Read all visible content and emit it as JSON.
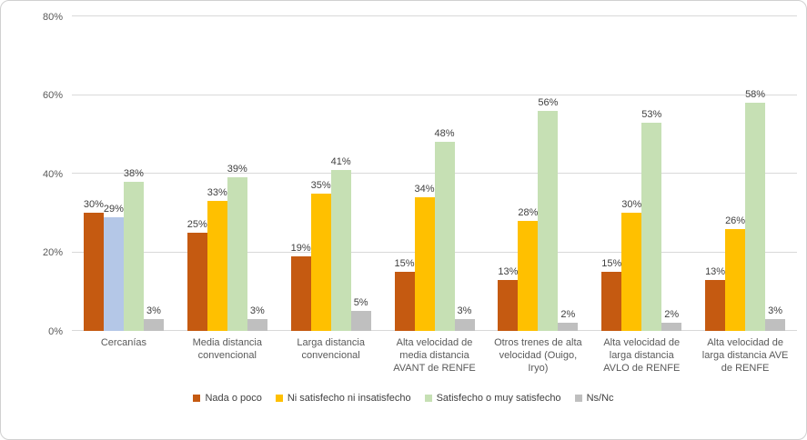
{
  "chart_data": {
    "type": "bar",
    "categories": [
      "Cercanías",
      "Media distancia convencional",
      "Larga distancia convencional",
      "Alta velocidad de media distancia AVANT de RENFE",
      "Otros trenes de alta velocidad (Ouigo, Iryo)",
      "Alta velocidad de larga distancia AVLO de RENFE",
      "Alta velocidad de larga distancia AVE de RENFE"
    ],
    "series": [
      {
        "name": "Nada o poco",
        "color": "#c55a11",
        "values": [
          30,
          25,
          19,
          15,
          13,
          15,
          13
        ]
      },
      {
        "name": "Ni satisfecho ni insatisfecho",
        "color": "#ffc000",
        "values": [
          29,
          33,
          35,
          34,
          28,
          30,
          26
        ]
      },
      {
        "name": "Satisfecho o muy satisfecho",
        "color": "#c6e0b4",
        "values": [
          38,
          39,
          41,
          48,
          56,
          53,
          58
        ]
      },
      {
        "name": "Ns/Nc",
        "color": "#bfbfbf",
        "values": [
          3,
          3,
          5,
          3,
          2,
          2,
          3
        ]
      }
    ],
    "bar_color_overrides": [
      {
        "series": 1,
        "category": 0,
        "color": "#b4c7e7"
      }
    ],
    "value_suffix": "%",
    "ylim": [
      0,
      80
    ],
    "yticks": [
      "0%",
      "20%",
      "40%",
      "60%",
      "80%"
    ],
    "grid": true,
    "legend_position": "bottom",
    "title": "",
    "xlabel": "",
    "ylabel": ""
  },
  "style": {
    "gridline_color": "#d9d9d9",
    "axis_text_color": "#595959",
    "data_label_color": "#404040",
    "frame_border_color": "#d0d0d0",
    "background": "#ffffff"
  }
}
